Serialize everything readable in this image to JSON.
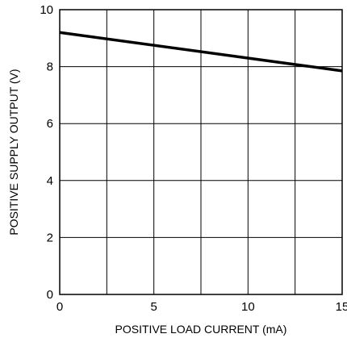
{
  "chart_data": {
    "type": "line",
    "xlabel": "POSITIVE LOAD CURRENT (mA)",
    "ylabel": "POSITIVE SUPPLY OUTPUT (V)",
    "xlim": [
      0,
      15
    ],
    "ylim": [
      0,
      10
    ],
    "x_ticks": [
      0,
      5,
      10,
      15
    ],
    "x_tick_labels": [
      "0",
      "5",
      "10",
      "15"
    ],
    "y_ticks": [
      0,
      2,
      4,
      6,
      8,
      10
    ],
    "y_tick_labels": [
      "0",
      "2",
      "4",
      "6",
      "8",
      "10"
    ],
    "grid": true,
    "grid_x_step": 2.5,
    "grid_y_step": 2,
    "series": [
      {
        "x": [
          0,
          15
        ],
        "y": [
          9.2,
          7.85
        ]
      }
    ]
  }
}
